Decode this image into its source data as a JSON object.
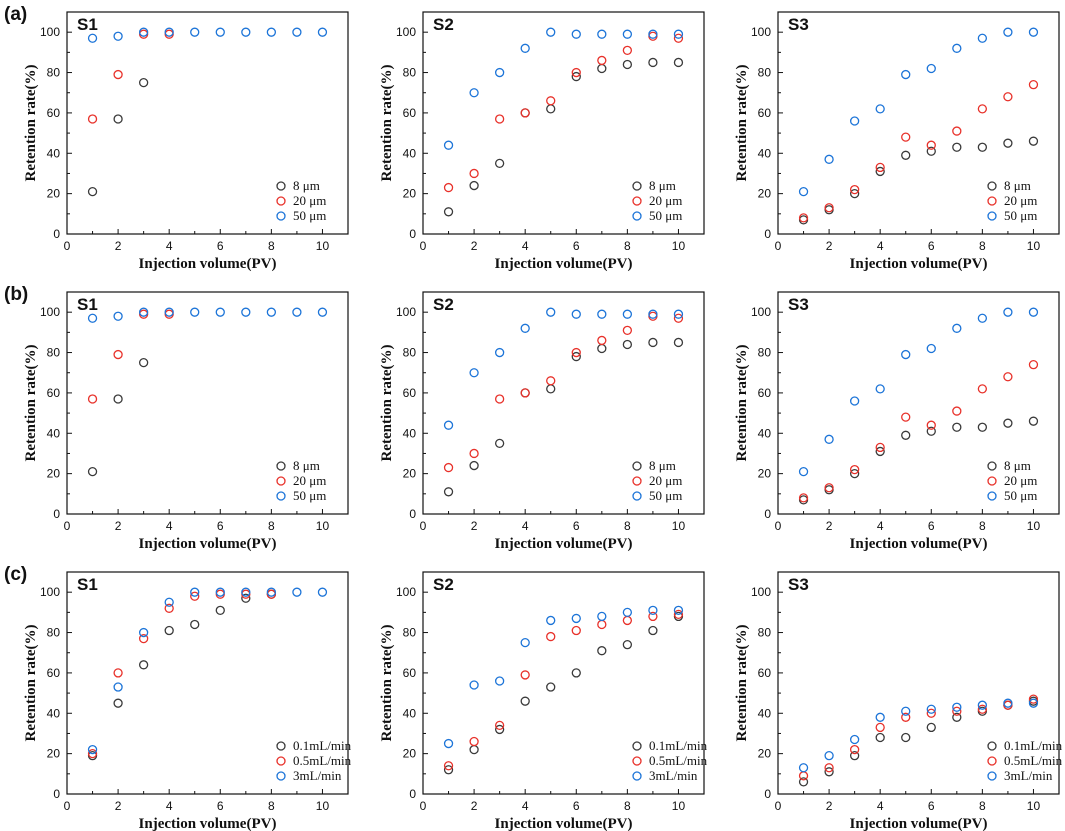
{
  "figure": {
    "row_labels": [
      "(a)",
      "(b)",
      "(c)"
    ],
    "colors": {
      "black": "#3a3a3a",
      "red": "#e8312a",
      "blue": "#1c74d8",
      "axis": "#111111"
    }
  },
  "chart_data": [
    {
      "type": "scatter",
      "title": "S1",
      "xlabel": "Injection volume(PV)",
      "ylabel": "Retention rate(%)",
      "xlim": [
        0,
        11
      ],
      "ylim": [
        0,
        110
      ],
      "xticks": [
        0,
        2,
        4,
        6,
        8,
        10
      ],
      "yticks": [
        0,
        20,
        40,
        60,
        80,
        100
      ],
      "legend_position": "bottom-right",
      "series": [
        {
          "name": "8 μm",
          "color": "#3a3a3a",
          "x": [
            1,
            2,
            3
          ],
          "y": [
            21,
            57,
            75
          ]
        },
        {
          "name": "20 μm",
          "color": "#e8312a",
          "x": [
            1,
            2,
            3,
            4
          ],
          "y": [
            57,
            79,
            99,
            99
          ]
        },
        {
          "name": "50 μm",
          "color": "#1c74d8",
          "x": [
            1,
            2,
            3,
            4,
            5,
            6,
            7,
            8,
            9,
            10
          ],
          "y": [
            97,
            98,
            100,
            100,
            100,
            100,
            100,
            100,
            100,
            100
          ]
        }
      ]
    },
    {
      "type": "scatter",
      "title": "S2",
      "xlabel": "Injection volume(PV)",
      "ylabel": "Retention rate(%)",
      "xlim": [
        0,
        11
      ],
      "ylim": [
        0,
        110
      ],
      "xticks": [
        0,
        2,
        4,
        6,
        8,
        10
      ],
      "yticks": [
        0,
        20,
        40,
        60,
        80,
        100
      ],
      "legend_position": "bottom-right",
      "series": [
        {
          "name": "8 μm",
          "color": "#3a3a3a",
          "x": [
            1,
            2,
            3,
            4,
            5,
            6,
            7,
            8,
            9,
            10
          ],
          "y": [
            11,
            24,
            35,
            60,
            62,
            78,
            82,
            84,
            85,
            85
          ]
        },
        {
          "name": "20 μm",
          "color": "#e8312a",
          "x": [
            1,
            2,
            3,
            4,
            5,
            6,
            7,
            8,
            9,
            10
          ],
          "y": [
            23,
            30,
            57,
            60,
            66,
            80,
            86,
            91,
            98,
            97
          ]
        },
        {
          "name": "50 μm",
          "color": "#1c74d8",
          "x": [
            1,
            2,
            3,
            4,
            5,
            6,
            7,
            8,
            9,
            10
          ],
          "y": [
            44,
            70,
            80,
            92,
            100,
            99,
            99,
            99,
            99,
            99
          ]
        }
      ]
    },
    {
      "type": "scatter",
      "title": "S3",
      "xlabel": "Injection volume(PV)",
      "ylabel": "Retention rate(%)",
      "xlim": [
        0,
        11
      ],
      "ylim": [
        0,
        110
      ],
      "xticks": [
        0,
        2,
        4,
        6,
        8,
        10
      ],
      "yticks": [
        0,
        20,
        40,
        60,
        80,
        100
      ],
      "legend_position": "bottom-right",
      "series": [
        {
          "name": "8 μm",
          "color": "#3a3a3a",
          "x": [
            1,
            2,
            3,
            4,
            5,
            6,
            7,
            8,
            9,
            10
          ],
          "y": [
            7,
            12,
            20,
            31,
            39,
            41,
            43,
            43,
            45,
            46
          ]
        },
        {
          "name": "20 μm",
          "color": "#e8312a",
          "x": [
            1,
            2,
            3,
            4,
            5,
            6,
            7,
            8,
            9,
            10
          ],
          "y": [
            8,
            13,
            22,
            33,
            48,
            44,
            51,
            62,
            68,
            74
          ]
        },
        {
          "name": "50 μm",
          "color": "#1c74d8",
          "x": [
            1,
            2,
            3,
            4,
            5,
            6,
            7,
            8,
            9,
            10
          ],
          "y": [
            21,
            37,
            56,
            62,
            79,
            82,
            92,
            97,
            100,
            100
          ]
        }
      ]
    },
    {
      "type": "scatter",
      "title": "S1",
      "xlabel": "Injection volume(PV)",
      "ylabel": "Retention rate(%)",
      "xlim": [
        0,
        11
      ],
      "ylim": [
        0,
        110
      ],
      "xticks": [
        0,
        2,
        4,
        6,
        8,
        10
      ],
      "yticks": [
        0,
        20,
        40,
        60,
        80,
        100
      ],
      "legend_position": "bottom-right",
      "series": [
        {
          "name": "8 μm",
          "color": "#3a3a3a",
          "x": [
            1,
            2,
            3
          ],
          "y": [
            21,
            57,
            75
          ]
        },
        {
          "name": "20 μm",
          "color": "#e8312a",
          "x": [
            1,
            2,
            3,
            4
          ],
          "y": [
            57,
            79,
            99,
            99
          ]
        },
        {
          "name": "50 μm",
          "color": "#1c74d8",
          "x": [
            1,
            2,
            3,
            4,
            5,
            6,
            7,
            8,
            9,
            10
          ],
          "y": [
            97,
            98,
            100,
            100,
            100,
            100,
            100,
            100,
            100,
            100
          ]
        }
      ]
    },
    {
      "type": "scatter",
      "title": "S2",
      "xlabel": "Injection volume(PV)",
      "ylabel": "Retention rate(%)",
      "xlim": [
        0,
        11
      ],
      "ylim": [
        0,
        110
      ],
      "xticks": [
        0,
        2,
        4,
        6,
        8,
        10
      ],
      "yticks": [
        0,
        20,
        40,
        60,
        80,
        100
      ],
      "legend_position": "bottom-right",
      "series": [
        {
          "name": "8 μm",
          "color": "#3a3a3a",
          "x": [
            1,
            2,
            3,
            4,
            5,
            6,
            7,
            8,
            9,
            10
          ],
          "y": [
            11,
            24,
            35,
            60,
            62,
            78,
            82,
            84,
            85,
            85
          ]
        },
        {
          "name": "20 μm",
          "color": "#e8312a",
          "x": [
            1,
            2,
            3,
            4,
            5,
            6,
            7,
            8,
            9,
            10
          ],
          "y": [
            23,
            30,
            57,
            60,
            66,
            80,
            86,
            91,
            98,
            97
          ]
        },
        {
          "name": "50 μm",
          "color": "#1c74d8",
          "x": [
            1,
            2,
            3,
            4,
            5,
            6,
            7,
            8,
            9,
            10
          ],
          "y": [
            44,
            70,
            80,
            92,
            100,
            99,
            99,
            99,
            99,
            99
          ]
        }
      ]
    },
    {
      "type": "scatter",
      "title": "S3",
      "xlabel": "Injection volume(PV)",
      "ylabel": "Retention rate(%)",
      "xlim": [
        0,
        11
      ],
      "ylim": [
        0,
        110
      ],
      "xticks": [
        0,
        2,
        4,
        6,
        8,
        10
      ],
      "yticks": [
        0,
        20,
        40,
        60,
        80,
        100
      ],
      "legend_position": "bottom-right",
      "series": [
        {
          "name": "8 μm",
          "color": "#3a3a3a",
          "x": [
            1,
            2,
            3,
            4,
            5,
            6,
            7,
            8,
            9,
            10
          ],
          "y": [
            7,
            12,
            20,
            31,
            39,
            41,
            43,
            43,
            45,
            46
          ]
        },
        {
          "name": "20 μm",
          "color": "#e8312a",
          "x": [
            1,
            2,
            3,
            4,
            5,
            6,
            7,
            8,
            9,
            10
          ],
          "y": [
            8,
            13,
            22,
            33,
            48,
            44,
            51,
            62,
            68,
            74
          ]
        },
        {
          "name": "50 μm",
          "color": "#1c74d8",
          "x": [
            1,
            2,
            3,
            4,
            5,
            6,
            7,
            8,
            9,
            10
          ],
          "y": [
            21,
            37,
            56,
            62,
            79,
            82,
            92,
            97,
            100,
            100
          ]
        }
      ]
    },
    {
      "type": "scatter",
      "title": "S1",
      "xlabel": "Injection volume(PV)",
      "ylabel": "Retention rate(%)",
      "xlim": [
        0,
        11
      ],
      "ylim": [
        0,
        110
      ],
      "xticks": [
        0,
        2,
        4,
        6,
        8,
        10
      ],
      "yticks": [
        0,
        20,
        40,
        60,
        80,
        100
      ],
      "legend_position": "bottom-right",
      "series": [
        {
          "name": "0.1mL/min",
          "color": "#3a3a3a",
          "x": [
            1,
            2,
            3,
            4,
            5,
            6,
            7,
            8
          ],
          "y": [
            19,
            45,
            64,
            81,
            84,
            91,
            97,
            99
          ]
        },
        {
          "name": "0.5mL/min",
          "color": "#e8312a",
          "x": [
            1,
            2,
            3,
            4,
            5,
            6,
            7,
            8
          ],
          "y": [
            20,
            60,
            77,
            92,
            98,
            99,
            99,
            99
          ]
        },
        {
          "name": "3mL/min",
          "color": "#1c74d8",
          "x": [
            1,
            2,
            3,
            4,
            5,
            6,
            7,
            8,
            9,
            10
          ],
          "y": [
            22,
            53,
            80,
            95,
            100,
            100,
            100,
            100,
            100,
            100
          ]
        }
      ]
    },
    {
      "type": "scatter",
      "title": "S2",
      "xlabel": "Injection volume(PV)",
      "ylabel": "Retention rate(%)",
      "xlim": [
        0,
        11
      ],
      "ylim": [
        0,
        110
      ],
      "xticks": [
        0,
        2,
        4,
        6,
        8,
        10
      ],
      "yticks": [
        0,
        20,
        40,
        60,
        80,
        100
      ],
      "legend_position": "bottom-right",
      "series": [
        {
          "name": "0.1mL/min",
          "color": "#3a3a3a",
          "x": [
            1,
            2,
            3,
            4,
            5,
            6,
            7,
            8,
            9,
            10
          ],
          "y": [
            12,
            22,
            32,
            46,
            53,
            60,
            71,
            74,
            81,
            88
          ]
        },
        {
          "name": "0.5mL/min",
          "color": "#e8312a",
          "x": [
            1,
            2,
            3,
            4,
            5,
            6,
            7,
            8,
            9,
            10
          ],
          "y": [
            14,
            26,
            34,
            59,
            78,
            81,
            84,
            86,
            88,
            89
          ]
        },
        {
          "name": "3mL/min",
          "color": "#1c74d8",
          "x": [
            1,
            2,
            3,
            4,
            5,
            6,
            7,
            8,
            9,
            10
          ],
          "y": [
            25,
            54,
            56,
            75,
            86,
            87,
            88,
            90,
            91,
            91
          ]
        }
      ]
    },
    {
      "type": "scatter",
      "title": "S3",
      "xlabel": "Injection volume(PV)",
      "ylabel": "Retention rate(%)",
      "xlim": [
        0,
        11
      ],
      "ylim": [
        0,
        110
      ],
      "xticks": [
        0,
        2,
        4,
        6,
        8,
        10
      ],
      "yticks": [
        0,
        20,
        40,
        60,
        80,
        100
      ],
      "legend_position": "bottom-right",
      "series": [
        {
          "name": "0.1mL/min",
          "color": "#3a3a3a",
          "x": [
            1,
            2,
            3,
            4,
            5,
            6,
            7,
            8,
            9,
            10
          ],
          "y": [
            6,
            11,
            19,
            28,
            28,
            33,
            38,
            41,
            44,
            46
          ]
        },
        {
          "name": "0.5mL/min",
          "color": "#e8312a",
          "x": [
            1,
            2,
            3,
            4,
            5,
            6,
            7,
            8,
            9,
            10
          ],
          "y": [
            9,
            13,
            22,
            33,
            38,
            40,
            41,
            42,
            44,
            47
          ]
        },
        {
          "name": "3mL/min",
          "color": "#1c74d8",
          "x": [
            1,
            2,
            3,
            4,
            5,
            6,
            7,
            8,
            9,
            10
          ],
          "y": [
            13,
            19,
            27,
            38,
            41,
            42,
            43,
            44,
            45,
            45
          ]
        }
      ]
    }
  ]
}
